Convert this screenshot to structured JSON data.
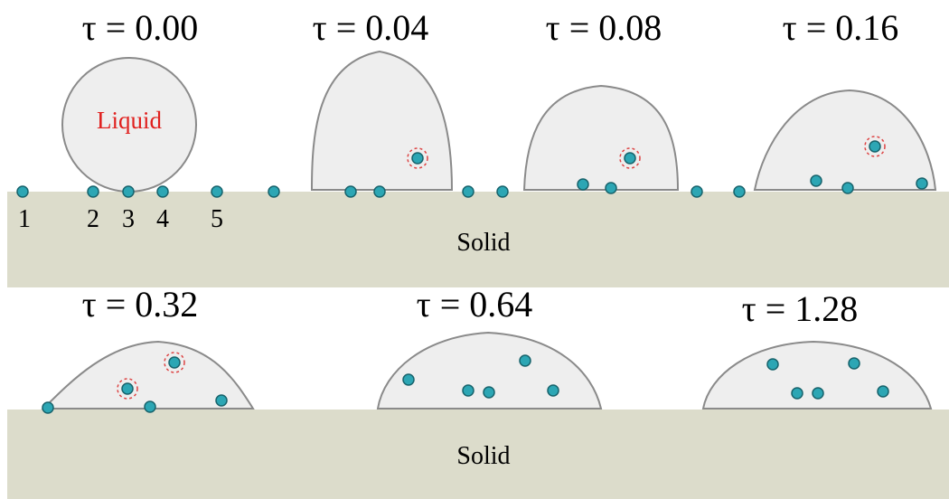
{
  "top_row": {
    "panels": [
      {
        "label": "τ = 0.00",
        "annotation": "Liquid"
      },
      {
        "label": "τ = 0.04"
      },
      {
        "label": "τ = 0.08"
      },
      {
        "label": "τ = 0.16"
      }
    ],
    "site_labels": [
      "1",
      "2",
      "3",
      "4",
      "5"
    ],
    "substrate": "Solid"
  },
  "bottom_row": {
    "panels": [
      {
        "label": "τ = 0.32"
      },
      {
        "label": "τ = 0.64"
      },
      {
        "label": "τ = 1.28"
      }
    ],
    "substrate": "Solid"
  }
}
